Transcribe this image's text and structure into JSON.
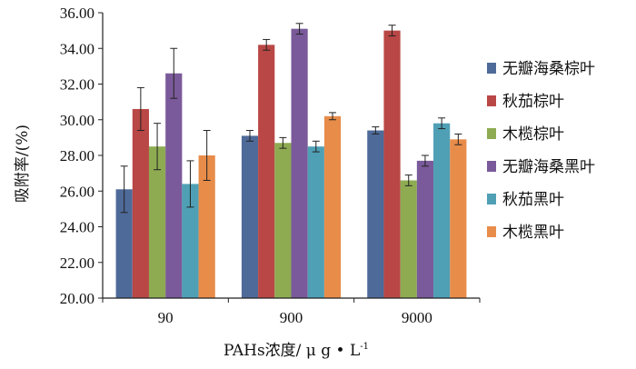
{
  "chart_data": {
    "type": "bar",
    "title": "",
    "ylabel": "吸附率/(%)",
    "xlabel_main": "PAHs浓度/ μ g • L",
    "xlabel_sup": "-1",
    "categories": [
      "90",
      "900",
      "9000"
    ],
    "ylim": [
      20,
      36
    ],
    "yticks": [
      "20.00",
      "22.00",
      "24.00",
      "26.00",
      "28.00",
      "30.00",
      "32.00",
      "34.00",
      "36.00"
    ],
    "legend_position": "right",
    "series": [
      {
        "name": "无瓣海桑棕叶",
        "color": "#4e6a99",
        "values": [
          26.1,
          29.1,
          29.4
        ],
        "errors": [
          1.3,
          0.3,
          0.2
        ]
      },
      {
        "name": "秋茄棕叶",
        "color": "#b94745",
        "values": [
          30.6,
          34.2,
          35.0
        ],
        "errors": [
          1.2,
          0.3,
          0.3
        ]
      },
      {
        "name": "木榄棕叶",
        "color": "#8eab52",
        "values": [
          28.5,
          28.7,
          26.6
        ],
        "errors": [
          1.3,
          0.3,
          0.3
        ]
      },
      {
        "name": "无瓣海桑黑叶",
        "color": "#7a5a9a",
        "values": [
          32.6,
          35.1,
          27.7
        ],
        "errors": [
          1.4,
          0.3,
          0.3
        ]
      },
      {
        "name": "秋茄黑叶",
        "color": "#4fa0b5",
        "values": [
          26.4,
          28.5,
          29.8
        ],
        "errors": [
          1.3,
          0.3,
          0.3
        ]
      },
      {
        "name": "木榄黑叶",
        "color": "#e88c4a",
        "values": [
          28.0,
          30.2,
          28.9
        ],
        "errors": [
          1.4,
          0.2,
          0.3
        ]
      }
    ]
  }
}
